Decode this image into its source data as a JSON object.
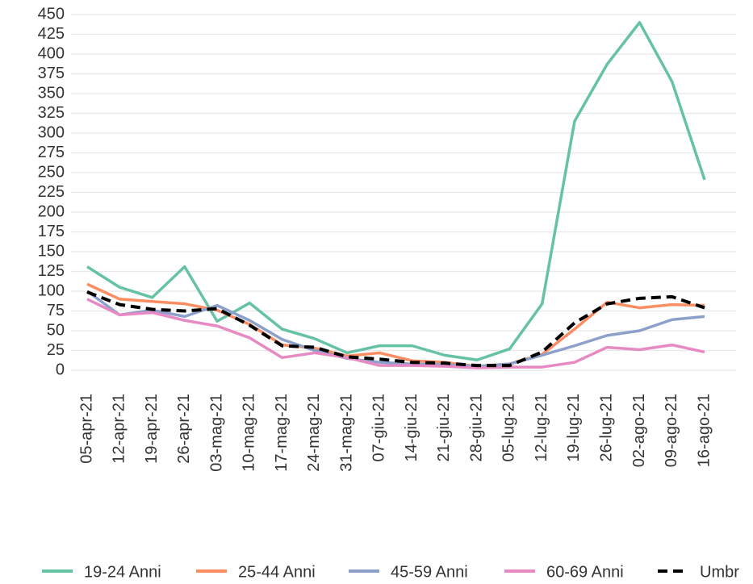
{
  "chart_data": {
    "type": "line",
    "categories": [
      "05-apr-21",
      "12-apr-21",
      "19-apr-21",
      "26-apr-21",
      "03-mag-21",
      "10-mag-21",
      "17-mag-21",
      "24-mag-21",
      "31-mag-21",
      "07-giu-21",
      "14-giu-21",
      "21-giu-21",
      "28-giu-21",
      "05-lug-21",
      "12-lug-21",
      "19-lug-21",
      "26-lug-21",
      "02-ago-21",
      "09-ago-21",
      "16-ago-21"
    ],
    "series": [
      {
        "name": "19-24 Anni",
        "color": "#66c2a5",
        "values": [
          131,
          105,
          92,
          131,
          62,
          85,
          52,
          40,
          22,
          31,
          31,
          19,
          13,
          27,
          84,
          315,
          387,
          440,
          365,
          241
        ]
      },
      {
        "name": "25-44 Anni",
        "color": "#fc8d62",
        "values": [
          109,
          90,
          87,
          84,
          76,
          58,
          32,
          28,
          18,
          22,
          12,
          10,
          5,
          8,
          20,
          52,
          86,
          79,
          83,
          82
        ]
      },
      {
        "name": "45-59 Anni",
        "color": "#8da0cb",
        "values": [
          100,
          70,
          76,
          68,
          82,
          63,
          39,
          25,
          15,
          10,
          8,
          7,
          5,
          8,
          19,
          31,
          44,
          50,
          64,
          68
        ]
      },
      {
        "name": "60-69 Anni",
        "color": "#e78ac3",
        "values": [
          90,
          70,
          73,
          63,
          56,
          41,
          16,
          22,
          16,
          6,
          6,
          5,
          3,
          4,
          4,
          10,
          29,
          26,
          32,
          23
        ]
      },
      {
        "name": "Umbr",
        "color": "#000000",
        "dashed": true,
        "values": [
          99,
          83,
          77,
          75,
          78,
          57,
          31,
          29,
          17,
          14,
          10,
          9,
          6,
          6,
          23,
          60,
          84,
          91,
          93,
          79
        ]
      }
    ],
    "ylim": [
      0,
      450
    ],
    "yticks": [
      0,
      25,
      50,
      75,
      100,
      125,
      150,
      175,
      200,
      225,
      250,
      275,
      300,
      325,
      350,
      375,
      400,
      425,
      450
    ],
    "grid": true
  }
}
